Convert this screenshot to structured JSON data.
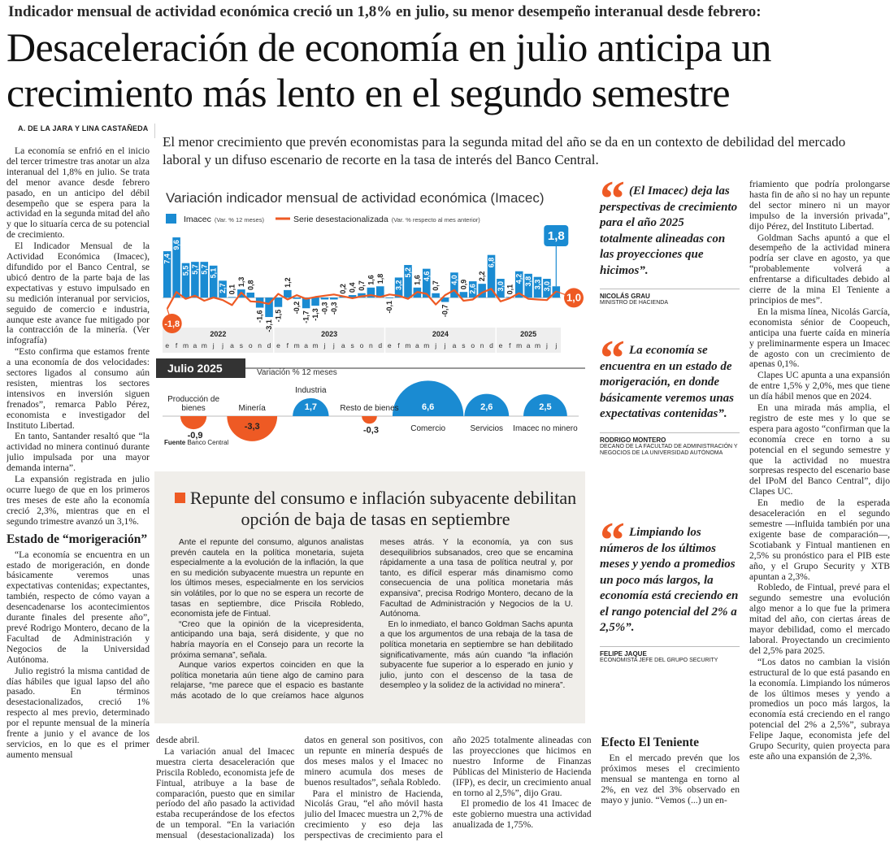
{
  "kicker": "Indicador mensual de actividad económica creció un 1,8% en julio, su menor desempeño interanual desde febrero:",
  "title": "Desaceleración de economía en julio anticipa un crecimiento más lento en el segundo semestre",
  "byline": "A. DE LA JARA Y LINA CASTAÑEDA",
  "lead": "El menor crecimiento que prevén economistas para la segunda mitad del año se da en un contexto de debilidad del mercado laboral y un difuso escenario de recorte en la tasa de interés del Banco Central.",
  "left_column": [
    {
      "kind": "p",
      "text": "La economía se enfrió en el inicio del tercer trimestre tras anotar un alza interanual del 1,8% en julio. Se trata del menor avance desde febrero pasado, en un anticipo del débil desempeño que se espera para la actividad en la segunda mitad del año y que lo situaría cerca de su potencial de crecimiento."
    },
    {
      "kind": "p",
      "text": "El Indicador Mensual de la Actividad Económica (Imacec), difundido por el Banco Central, se ubicó dentro de la parte baja de las expectativas y estuvo impulsado en su medición interanual por servicios, seguido de comercio e industria, aunque este avance fue mitigado por la contracción de la minería. (Ver infografía)"
    },
    {
      "kind": "p",
      "text": "“Esto confirma que estamos frente a una economía de dos velocidades: sectores ligados al consumo aún resisten, mientras los sectores intensivos en inversión siguen frenados”, remarca Pablo Pérez, economista e investigador del Instituto Libertad."
    },
    {
      "kind": "p",
      "text": "En tanto, Santander resaltó que “la actividad no minera continuó durante julio impulsada por una mayor demanda interna”."
    },
    {
      "kind": "p",
      "text": "La expansión registrada en julio ocurre luego de que en los primeros tres meses de este año la economía creció 2,3%, mientras que en el segundo trimestre avanzó un 3,1%."
    },
    {
      "kind": "h",
      "text": "Estado de “morigeración”"
    },
    {
      "kind": "p",
      "text": "“La economía se encuentra en un estado de morigeración, en donde básicamente veremos unas expectativas contenidas; expectantes, también, respecto de cómo vayan a desencadenarse los acontecimientos durante finales del presente año”, prevé Rodrigo Montero, decano de la Facultad de Administración y Negocios de la Universidad Autónoma."
    },
    {
      "kind": "p",
      "text": "Julio registró la misma cantidad de días hábiles que igual lapso del año pasado. En términos desestacionalizados, creció 1% respecto al mes previo, determinado por el repunte mensual de la minería frente a junio y el avance de los servicios, en lo que es el primer aumento mensual"
    }
  ],
  "bottom_columns": [
    {
      "kind": "p",
      "text": "desde abril."
    },
    {
      "kind": "p",
      "text": "La variación anual del Imacec muestra cierta desaceleración que Priscila Robledo, economista jefe de Fintual, atribuye a la base de comparación, puesto que en similar período del año pasado la actividad estaba recuperándose de los efectos de un temporal. “En la variación mensual (desestacionalizada) los datos en general son positivos, con un repunte en minería después de dos meses malos y el Imacec no minero acumula dos meses de buenos resultados”, señala Robledo."
    },
    {
      "kind": "p",
      "text": "Para el ministro de Hacienda, Nicolás Grau, “el año móvil hasta julio del Imacec muestra un 2,7% de crecimiento y eso deja las perspectivas de crecimiento para el año 2025 totalmente alineadas con las proyecciones que hicimos en nuestro Informe de Finanzas Públicas del Ministerio de Hacienda (IFP), es decir, un crecimiento anual en torno al 2,5%”, dijo Grau."
    },
    {
      "kind": "p",
      "text": "El promedio de los 41 Imacec de este gobierno muestra una actividad anualizada de 1,75%."
    },
    {
      "kind": "h",
      "text": "Efecto El Teniente"
    },
    {
      "kind": "p",
      "text": "En el mercado prevén que los próximos meses el crecimiento mensual se mantenga en torno al 2%, en vez del 3% observado en mayo y junio. “Vemos (...) un en-"
    }
  ],
  "right_column": [
    {
      "kind": "p",
      "text": "friamiento que podría prolongarse hasta fin de año si no hay un repunte del sector minero ni un mayor impulso de la inversión privada”, dijo Pérez, del Instituto Libertad."
    },
    {
      "kind": "p",
      "text": "Goldman Sachs apuntó a que el desempeño de la actividad minera podría ser clave en agosto, ya que “probablemente volverá a enfrentarse a dificultades debido al cierre de la mina El Teniente a principios de mes”."
    },
    {
      "kind": "p",
      "text": "En la misma línea, Nicolás García, economista sénior de Coopeuch, anticipa una fuerte caída en minería y preliminarmente espera un Imacec de agosto con un crecimiento de apenas 0,1%."
    },
    {
      "kind": "p",
      "text": "Clapes UC apunta a una expansión de entre 1,5% y 2,0%, mes que tiene un día hábil menos que en 2024."
    },
    {
      "kind": "p",
      "text": "En una mirada más amplia, el registro de este mes y lo que se espera para agosto “confirman que la economía crece en torno a su potencial en el segundo semestre y que la actividad no muestra sorpresas respecto del escenario base del IPoM del Banco Central”, dijo Clapes UC."
    },
    {
      "kind": "p",
      "text": "En medio de la esperada desaceleración en el segundo semestre —influida también por una exigente base de comparación—, Scotiabank y Fintual mantienen en 2,5% su pronóstico para el PIB este año, y el Grupo Security y XTB apuntan a 2,3%."
    },
    {
      "kind": "p",
      "text": "Robledo, de Fintual, prevé para el segundo semestre una evolución algo menor a lo que fue la primera mitad del año, con ciertas áreas de mayor debilidad, como el mercado laboral. Proyectando un crecimiento del 2,5% para 2025."
    },
    {
      "kind": "p",
      "text": "“Los datos no cambian la visión estructural de lo que está pasando en la economía. Limpiando los números de los últimos meses y yendo a promedios un poco más largos, la economía está creciendo en el rango potencial del 2% a 2,5%”, subraya Felipe Jaque, economista jefe del Grupo Security, quien proyecta para este año una expansión de 2,3%."
    }
  ],
  "quotes": [
    {
      "text": "(El Imacec) deja las perspectivas de crecimiento para el año 2025 totalmente alineadas con las proyecciones que hicimos”.",
      "name": "NICOLÁS GRAU",
      "role": "MINISTRO DE HACIENDA"
    },
    {
      "text": "La economía se encuentra en un estado de morigeración, en donde básicamente veremos unas expectativas contenidas”.",
      "name": "RODRIGO MONTERO",
      "role": "DECANO DE LA FACULTAD DE ADMINISTRACIÓN Y NEGOCIOS DE LA UNIVERSIDAD AUTÓNOMA"
    },
    {
      "text": "Limpiando los números de los últimos meses y yendo a promedios un poco más largos, la economía está creciendo en el rango potencial del 2% a 2,5%”.",
      "name": "FELIPE JAQUE",
      "role": "ECONOMISTA JEFE DEL GRUPO SECURITY"
    }
  ],
  "sub_article": {
    "title": "Repunte del consumo e inflación subyacente debilitan opción de baja de tasas en septiembre",
    "paragraphs": [
      {
        "kind": "p",
        "text": "Ante el repunte del consumo, algunos analistas prevén cautela en la política monetaria, sujeta especialmente a la evolución de la inflación, la que en su medición subyacente muestra un repunte en los últimos meses, especialmente en los servicios sin volátiles, por lo que no se espera un recorte de tasas en septiembre, dice Priscila Robledo, economista jefe de Fintual."
      },
      {
        "kind": "p",
        "text": "“Creo que la opinión de la vicepresidenta, anticipando una baja, será disidente, y que no habría mayoría en el Consejo para un recorte la próxima semana”, señala."
      },
      {
        "kind": "p",
        "text": "Aunque varios expertos coinciden en que la política monetaria aún tiene algo de camino para relajarse, “me parece que el espacio es bastante más acotado de lo que creíamos hace algunos meses atrás. Y la economía, ya con sus desequilibrios subsanados, creo que se encamina rápidamente a una tasa de política neutral y, por tanto, es difícil esperar más dinamismo como consecuencia de una política monetaria más expansiva”, precisa Rodrigo Montero, decano de la Facultad de Administración y Negocios de la U. Autónoma."
      },
      {
        "kind": "p",
        "text": "En lo inmediato, el banco Goldman Sachs apunta a que los argumentos de una rebaja de la tasa de política monetaria en septiembre se han debilitado significativamente, más aún cuando “la inflación subyacente fue superior a lo esperado en junio y julio, junto con el descenso de la tasa de desempleo y la solidez de la actividad no minera”."
      }
    ]
  },
  "chart_data": [
    {
      "type": "bar",
      "title": "Variación indicador mensual de actividad económica (Imacec)",
      "categories": [
        "e",
        "f",
        "m",
        "a",
        "m",
        "j",
        "j",
        "a",
        "s",
        "o",
        "n",
        "d",
        "e",
        "f",
        "m",
        "a",
        "m",
        "j",
        "j",
        "a",
        "s",
        "o",
        "n",
        "d",
        "e",
        "f",
        "m",
        "a",
        "m",
        "j",
        "j",
        "a",
        "s",
        "o",
        "n",
        "d",
        "e",
        "f",
        "m",
        "a",
        "m",
        "j",
        "j"
      ],
      "years": [
        "2022",
        "2023",
        "2024",
        "2025"
      ],
      "ylim": [
        -4,
        10
      ],
      "series": [
        {
          "name": "Imacec",
          "legend_note": "(Var. % 12 meses)",
          "type": "bar",
          "color": "#1a8bd2",
          "values": [
            7.4,
            9.6,
            5.5,
            5.7,
            5.7,
            5.1,
            2.7,
            0.1,
            1.3,
            0.8,
            -1.6,
            -3.1,
            -1.5,
            1.2,
            -0.2,
            -1.7,
            -1.3,
            -0.3,
            -0.3,
            0.2,
            0.4,
            0.7,
            1.6,
            1.8,
            -0.1,
            3.2,
            5.2,
            1.6,
            4.6,
            0.7,
            -0.7,
            4.0,
            0.9,
            2.6,
            2.2,
            6.8,
            3.0,
            0.1,
            4.2,
            3.8,
            3.3,
            3.0,
            1.8
          ],
          "value_labels": [
            "7,4",
            "9,6",
            "5,5",
            "5,7",
            "5,7",
            "5,1",
            "2,7",
            "0,1",
            "1,3",
            "0,8",
            "-1,6",
            "-3,1",
            "-1,5",
            "1,2",
            "-0,2",
            "-1,7",
            "-1,3",
            "-0,3",
            "-0,3",
            "0,2",
            "0,4",
            "0,7",
            "1,6",
            "1,8",
            "-0,1",
            "3,2",
            "5,2",
            "1,6",
            "4,6",
            "0,7",
            "-0,7",
            "4,0",
            "0,9",
            "2,6",
            "2,2",
            "6,8",
            "3,0",
            "0,1",
            "4,2",
            "3,8",
            "3,3",
            "3,0",
            "1,8"
          ]
        },
        {
          "name": "Serie desestacionalizada",
          "legend_note": "(Var. % respecto al mes anterior)",
          "type": "line",
          "color": "#ee5a24",
          "values": [
            -1.8,
            0.9,
            -0.2,
            0.3,
            -0.5,
            0.0,
            -0.4,
            -1.2,
            0.8,
            -0.6,
            -0.7,
            -1.0,
            0.6,
            -0.3,
            0.4,
            -0.2,
            0.1,
            0.3,
            0.5,
            0.2,
            -0.1,
            0.2,
            0.4,
            0.1,
            0.5,
            0.3,
            -0.2,
            0.9,
            0.6,
            -1.1,
            0.4,
            1.2,
            -0.5,
            -0.3,
            0.8,
            1.4,
            -0.6,
            -0.1,
            0.7,
            -0.2,
            -0.3,
            -0.4,
            1.0
          ],
          "value_labels": [
            "-1,8",
            null,
            null,
            null,
            null,
            null,
            null,
            null,
            null,
            null,
            null,
            null,
            null,
            null,
            null,
            null,
            null,
            null,
            null,
            null,
            null,
            null,
            null,
            null,
            null,
            null,
            null,
            null,
            null,
            null,
            null,
            null,
            null,
            null,
            null,
            null,
            null,
            null,
            null,
            null,
            null,
            null,
            "1,0"
          ]
        }
      ]
    },
    {
      "type": "bubble",
      "title": "Julio 2025",
      "subtitle": "Variación % 12 meses",
      "categories": [
        "Producción de bienes",
        "Minería",
        "Industria",
        "Resto de bienes",
        "Comercio",
        "Servicios",
        "Imacec no minero"
      ],
      "values": [
        -0.9,
        -3.3,
        1.7,
        -0.3,
        6.6,
        2.6,
        2.5
      ],
      "value_labels": [
        "-0,9",
        "-3,3",
        "1,7",
        "-0,3",
        "6,6",
        "2,6",
        "2,5"
      ],
      "color_positive": "#1a8bd2",
      "color_negative": "#ee5a24",
      "source_label": "Fuente",
      "source": "Banco Central"
    }
  ]
}
